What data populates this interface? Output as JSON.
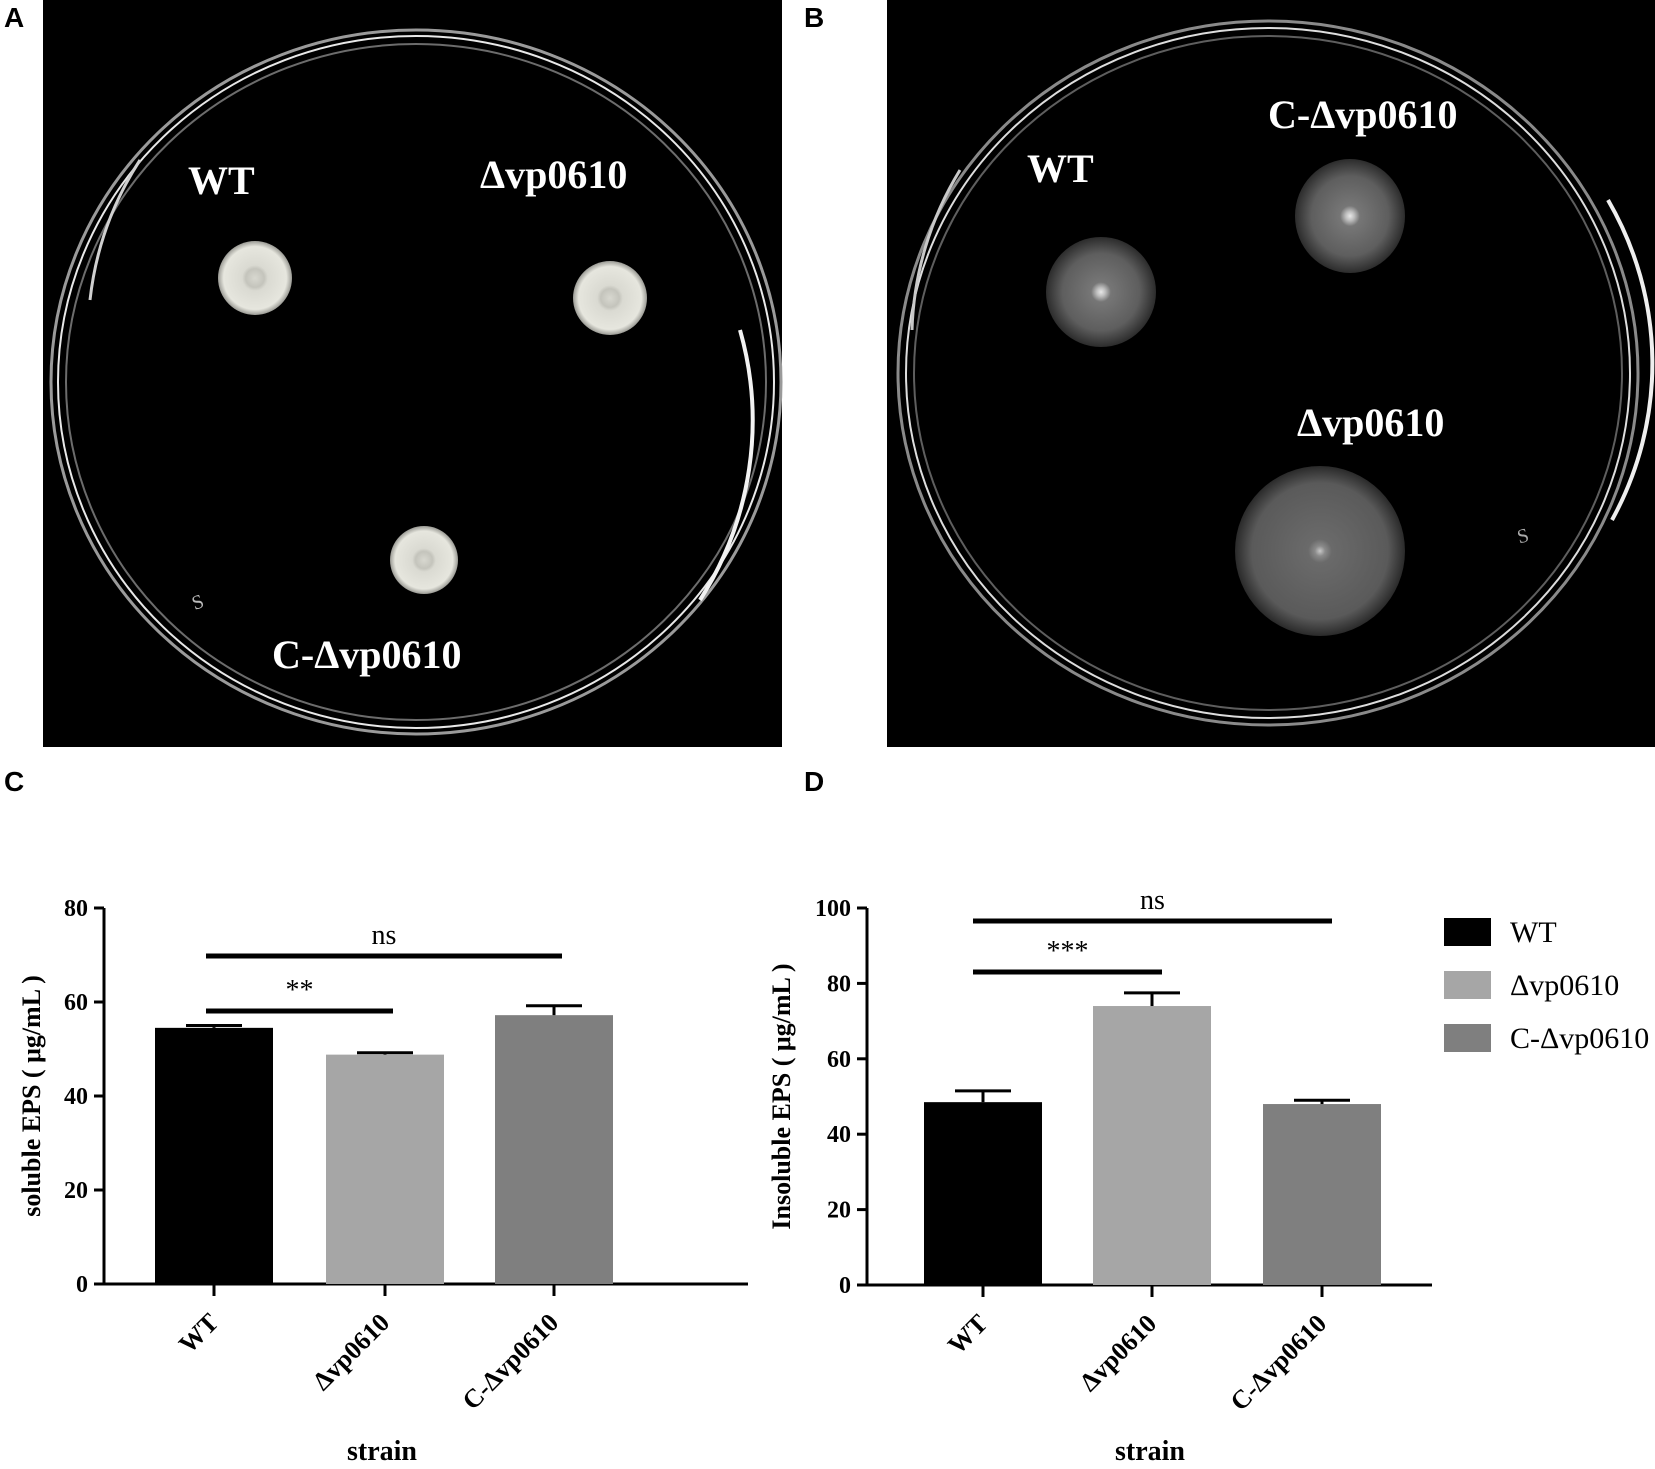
{
  "panels": {
    "A": {
      "letter": "A"
    },
    "B": {
      "letter": "B"
    },
    "C": {
      "letter": "C"
    },
    "D": {
      "letter": "D"
    }
  },
  "plate_a": {
    "labels": [
      "WT",
      "Δvp0610",
      "C-Δvp0610"
    ],
    "marks": [
      "S"
    ]
  },
  "plate_b": {
    "labels": [
      "WT",
      "C-Δvp0610",
      "Δvp0610"
    ],
    "marks": [
      "S"
    ]
  },
  "legend": {
    "entries": [
      {
        "label": "WT",
        "color": "#000000"
      },
      {
        "label": "Δvp0610",
        "color": "#a6a6a6"
      },
      {
        "label": "C-Δvp0610",
        "color": "#7f7f7f"
      }
    ]
  },
  "chart_data": [
    {
      "type": "bar",
      "panel": "C",
      "categories": [
        "WT",
        "Δvp0610",
        "C-Δvp0610"
      ],
      "values": [
        54.5,
        48.8,
        57.2
      ],
      "errors": [
        0.5,
        0.4,
        2.0
      ],
      "colors": [
        "#000000",
        "#a6a6a6",
        "#7f7f7f"
      ],
      "ylabel": "soluble EPS ( μg/mL )",
      "xlabel": "strain",
      "ylim": [
        0,
        80
      ],
      "yticks": [
        0,
        20,
        40,
        60,
        80
      ],
      "significance": [
        {
          "from": 0,
          "to": 1,
          "label": "**"
        },
        {
          "from": 0,
          "to": 2,
          "label": "ns"
        }
      ]
    },
    {
      "type": "bar",
      "panel": "D",
      "categories": [
        "WT",
        "Δvp0610",
        "C-Δvp0610"
      ],
      "values": [
        48.5,
        74.0,
        48.0
      ],
      "errors": [
        3.0,
        3.5,
        1.0
      ],
      "colors": [
        "#000000",
        "#a6a6a6",
        "#7f7f7f"
      ],
      "ylabel": "Insoluble EPS ( μg/mL )",
      "xlabel": "strain",
      "ylim": [
        0,
        100
      ],
      "yticks": [
        0,
        20,
        40,
        60,
        80,
        100
      ],
      "significance": [
        {
          "from": 0,
          "to": 1,
          "label": "***"
        },
        {
          "from": 0,
          "to": 2,
          "label": "ns"
        }
      ]
    }
  ]
}
